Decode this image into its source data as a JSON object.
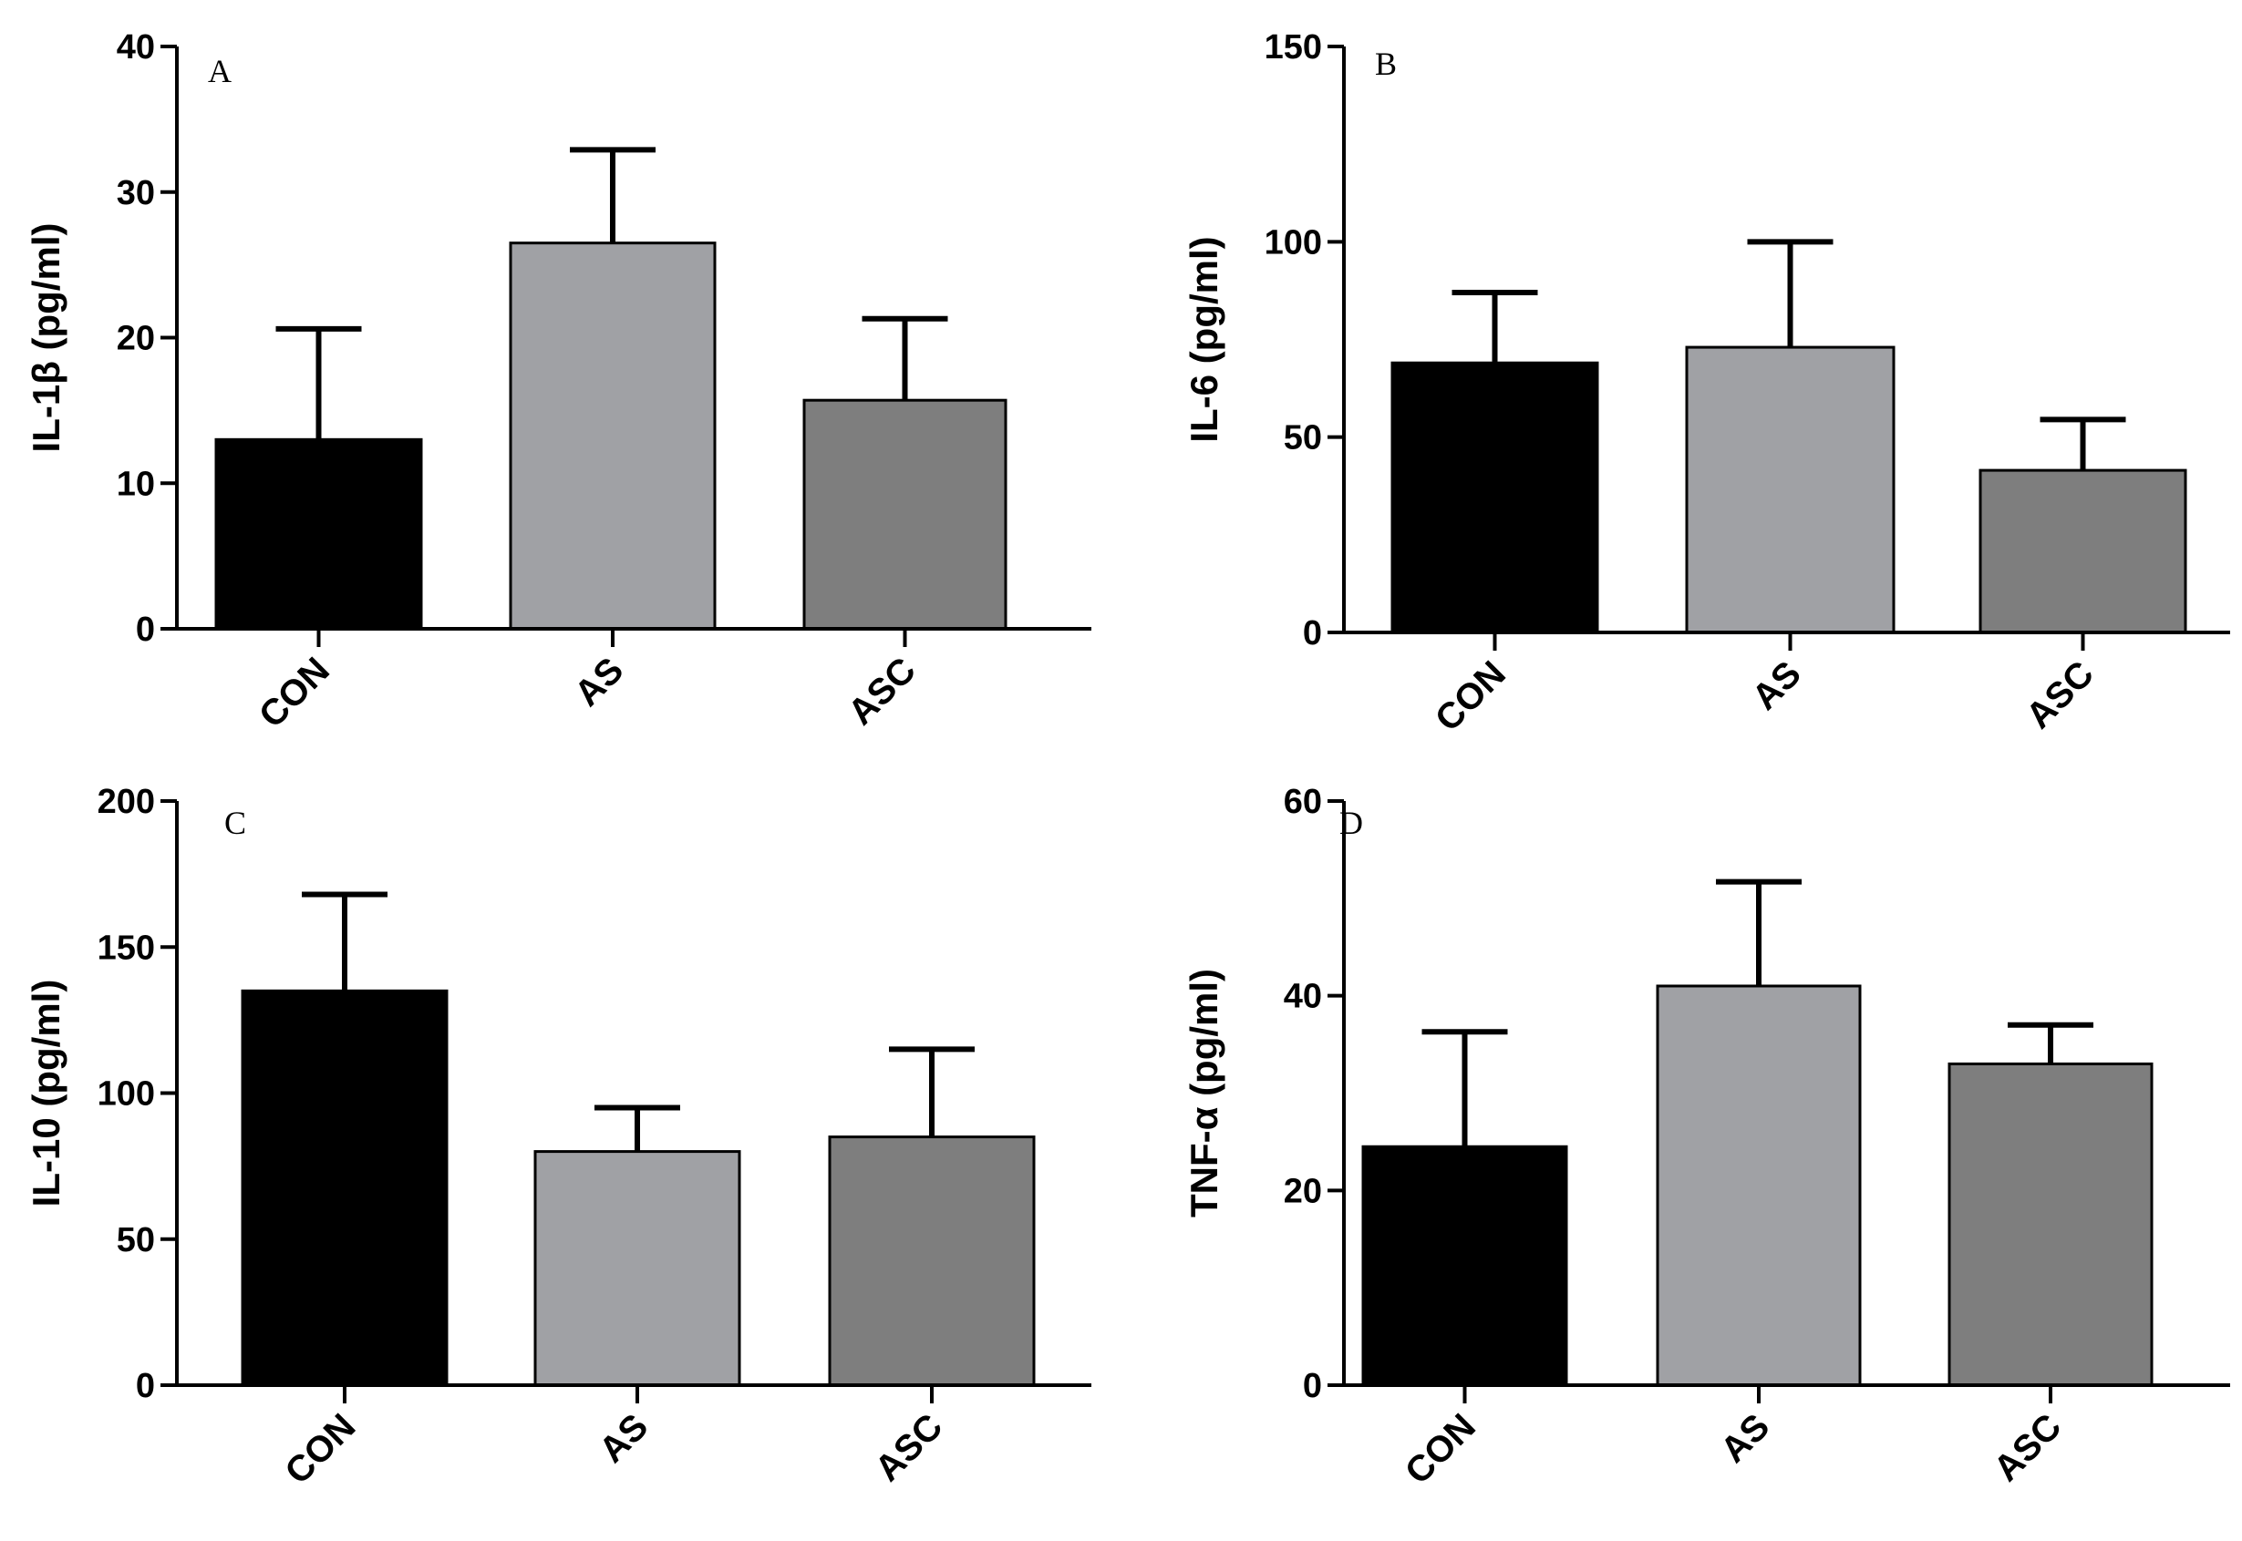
{
  "chart_data": [
    {
      "type": "bar",
      "panel_label": "A",
      "ylabel": "IL-1β  (pg/ml)",
      "categories": [
        "CON",
        "AS",
        "ASC"
      ],
      "values": [
        13,
        26.5,
        15.7
      ],
      "errors": [
        7.6,
        6.4,
        5.6
      ],
      "ylim": [
        0,
        40
      ],
      "yticks": [
        0,
        10,
        20,
        30,
        40
      ],
      "bar_colors": [
        "#000000",
        "#a0a1a5",
        "#7e7e7e"
      ]
    },
    {
      "type": "bar",
      "panel_label": "B",
      "ylabel": "IL-6 (pg/ml)",
      "categories": [
        "CON",
        "AS",
        "ASC"
      ],
      "values": [
        69,
        73,
        41.5
      ],
      "errors": [
        18,
        27,
        13
      ],
      "ylim": [
        0,
        150
      ],
      "yticks": [
        0,
        50,
        100,
        150
      ],
      "bar_colors": [
        "#000000",
        "#a0a1a5",
        "#7e7e7e"
      ]
    },
    {
      "type": "bar",
      "panel_label": "C",
      "ylabel": "IL-10 (pg/ml)",
      "categories": [
        "CON",
        "AS",
        "ASC"
      ],
      "values": [
        135,
        80,
        85
      ],
      "errors": [
        33,
        15,
        30
      ],
      "ylim": [
        0,
        200
      ],
      "yticks": [
        0,
        50,
        100,
        150,
        200
      ],
      "bar_colors": [
        "#000000",
        "#a0a1a5",
        "#7e7e7e"
      ]
    },
    {
      "type": "bar",
      "panel_label": "D",
      "ylabel": "TNF-α (pg/ml)",
      "categories": [
        "CON",
        "AS",
        "ASC"
      ],
      "values": [
        24.5,
        41,
        33
      ],
      "errors": [
        11.8,
        10.7,
        4
      ],
      "ylim": [
        0,
        60
      ],
      "yticks": [
        0,
        20,
        40,
        60
      ],
      "bar_colors": [
        "#000000",
        "#a0a1a5",
        "#7e7e7e"
      ]
    }
  ]
}
